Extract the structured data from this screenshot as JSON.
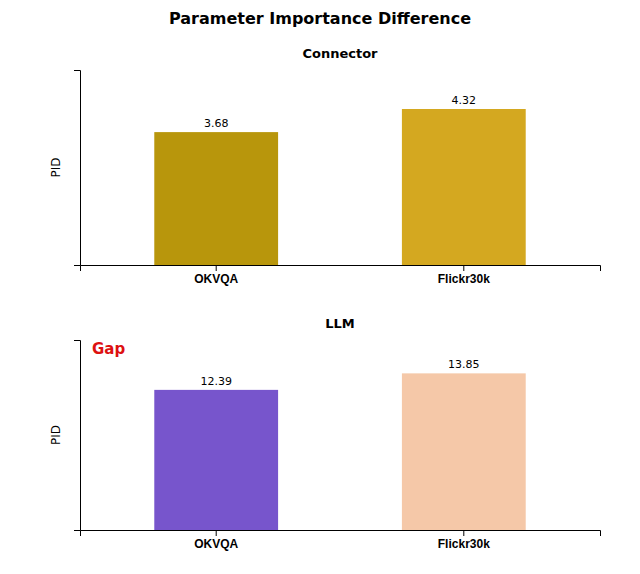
{
  "chart_data": [
    {
      "type": "bar",
      "title": "Parameter Importance Difference",
      "subtitle": "Connector",
      "categories": [
        "OKVQA",
        "Flickr30k"
      ],
      "values": [
        3.68,
        4.32
      ],
      "colors": [
        "#b8960c",
        "#d4a820"
      ],
      "y_label": "PID",
      "ylim": [
        0,
        5.4
      ],
      "yticks": [],
      "tick_labels": "x",
      "grid": false,
      "data_labels": true
    },
    {
      "type": "bar",
      "subtitle": "LLM",
      "categories": [
        "OKVQA",
        "Flickr30k"
      ],
      "values": [
        12.39,
        13.85
      ],
      "colors": [
        "#7755cc",
        "#f5c8a8"
      ],
      "y_label": "PID",
      "ylim": [
        0,
        16.8
      ],
      "yticks": [],
      "tick_labels": "x",
      "grid": false,
      "data_labels": true,
      "annotations": [
        {
          "text": "Gap",
          "color": "#dd1111"
        }
      ]
    }
  ]
}
